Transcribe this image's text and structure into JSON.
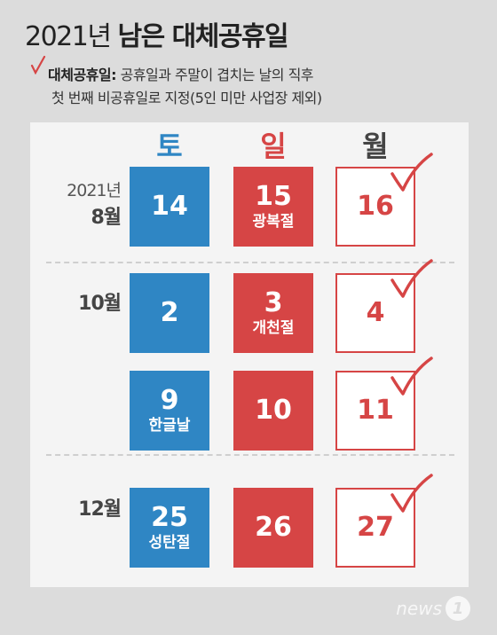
{
  "title": {
    "prefix": "2021년",
    "main": "남은 대체공휴일"
  },
  "note": {
    "lead": "대체공휴일:",
    "line1": "공휴일과 주말이 겹치는 날의 직후",
    "line2": "첫 번째 비공휴일로 지정(5인 미만 사업장 제외)"
  },
  "days": {
    "sat": "토",
    "sun": "일",
    "mon": "월"
  },
  "months": {
    "aug_year": "2021년",
    "aug": "8월",
    "oct": "10월",
    "dec": "12월"
  },
  "rows": [
    {
      "sat": {
        "num": "14",
        "label": ""
      },
      "sun": {
        "num": "15",
        "label": "광복절"
      },
      "mon": {
        "num": "16"
      }
    },
    {
      "sat": {
        "num": "2",
        "label": ""
      },
      "sun": {
        "num": "3",
        "label": "개천절"
      },
      "mon": {
        "num": "4"
      }
    },
    {
      "sat": {
        "num": "9",
        "label": "한글날"
      },
      "sun": {
        "num": "10",
        "label": ""
      },
      "mon": {
        "num": "11"
      }
    },
    {
      "sat": {
        "num": "25",
        "label": "성탄절"
      },
      "sun": {
        "num": "26",
        "label": ""
      },
      "mon": {
        "num": "27"
      }
    }
  ],
  "colors": {
    "blue": "#2f86c4",
    "red": "#d64545"
  },
  "logo": {
    "text": "news",
    "mark": "1"
  }
}
